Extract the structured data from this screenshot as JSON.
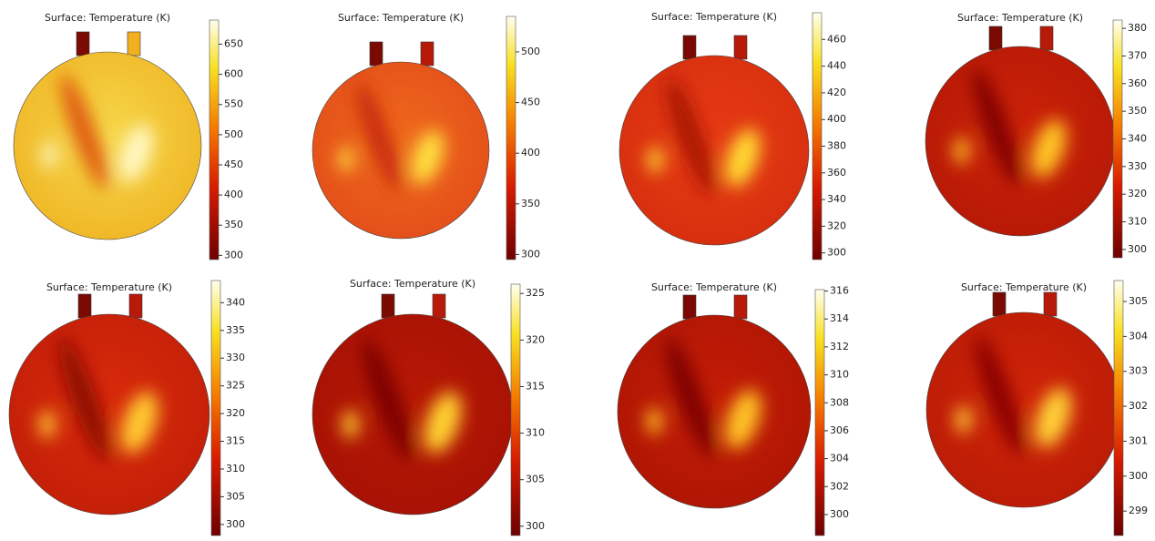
{
  "panels": [
    {
      "title": "Surface: Temperature (K)",
      "colorbar": {
        "ylim": [
          293,
          690
        ],
        "yticks": [
          300,
          350,
          400,
          450,
          500,
          550,
          600,
          650
        ]
      }
    },
    {
      "title": "Surface: Temperature (K)",
      "colorbar": {
        "ylim": [
          295,
          535
        ],
        "yticks": [
          300,
          350,
          400,
          450,
          500
        ]
      }
    },
    {
      "title": "Surface: Temperature (K)",
      "colorbar": {
        "ylim": [
          295,
          480
        ],
        "yticks": [
          300,
          320,
          340,
          360,
          380,
          400,
          420,
          440,
          460
        ]
      }
    },
    {
      "title": "Surface: Temperature (K)",
      "colorbar": {
        "ylim": [
          297,
          383
        ],
        "yticks": [
          300,
          310,
          320,
          330,
          340,
          350,
          360,
          370,
          380
        ]
      }
    },
    {
      "title": "Surface: Temperature (K)",
      "colorbar": {
        "ylim": [
          298,
          344
        ],
        "yticks": [
          300,
          305,
          310,
          315,
          320,
          325,
          330,
          335,
          340
        ]
      }
    },
    {
      "title": "Surface: Temperature (K)",
      "colorbar": {
        "ylim": [
          299,
          326
        ],
        "yticks": [
          300,
          305,
          310,
          315,
          320,
          325
        ]
      }
    },
    {
      "title": "Surface: Temperature (K)",
      "colorbar": {
        "ylim": [
          298.5,
          316.1
        ],
        "yticks": [
          300,
          302,
          304,
          306,
          308,
          310,
          312,
          314,
          316
        ]
      }
    },
    {
      "title": "Surface: Temperature (K)",
      "colorbar": {
        "ylim": [
          298.3,
          305.6
        ],
        "yticks": [
          299,
          300,
          301,
          302,
          303,
          304,
          305
        ]
      }
    }
  ]
}
